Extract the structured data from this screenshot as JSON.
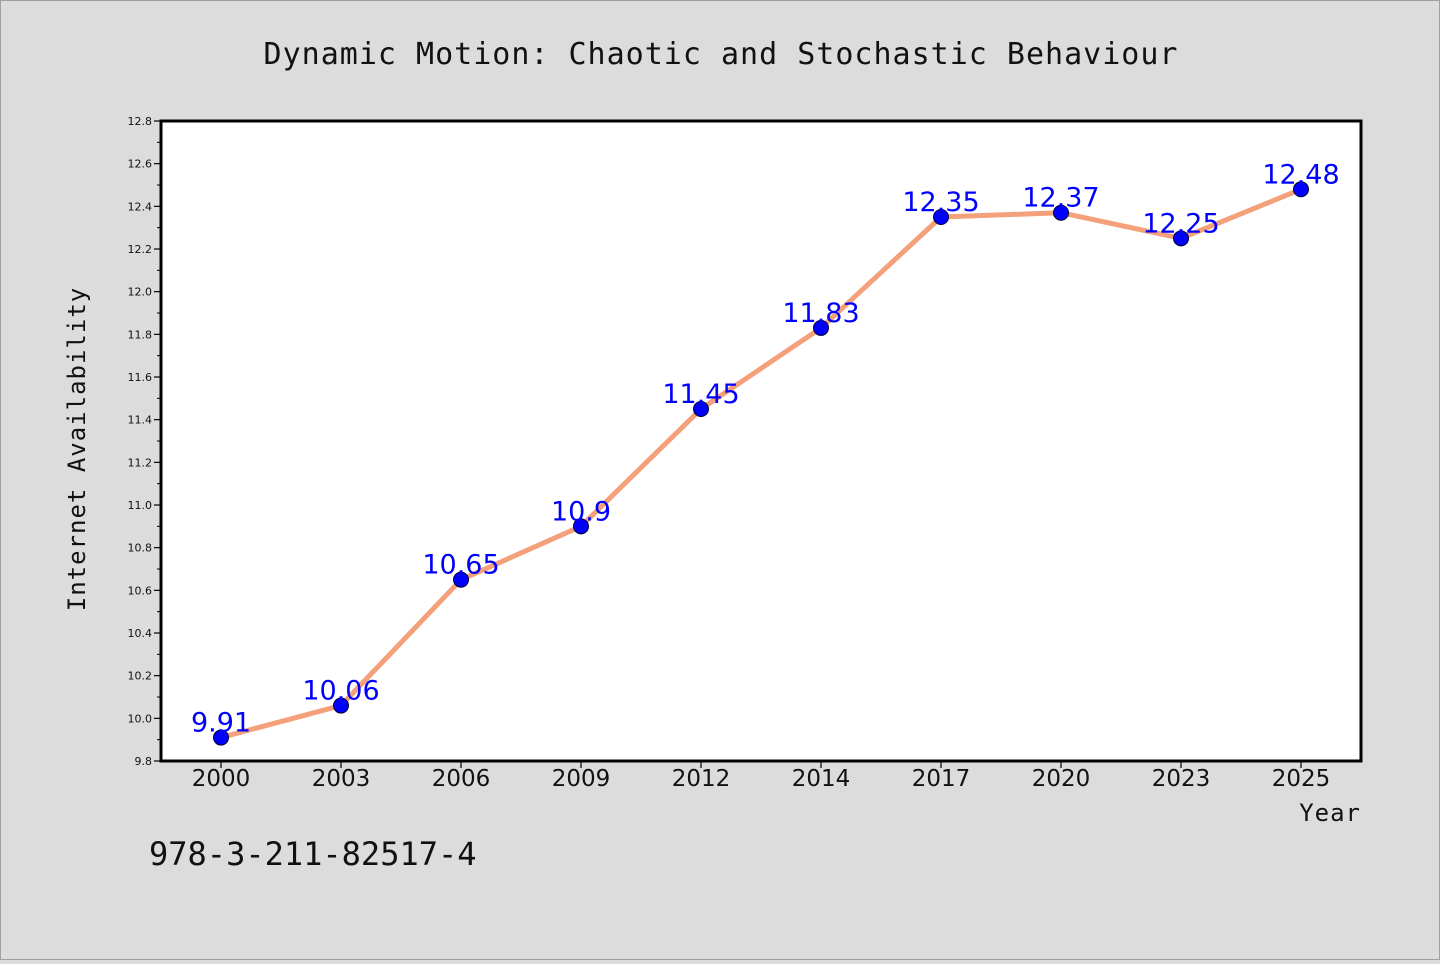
{
  "chart_data": {
    "type": "line",
    "title": "Dynamic Motion: Chaotic and Stochastic Behaviour",
    "xlabel": "Year",
    "ylabel": "Internet Availability",
    "categories": [
      "2000",
      "2003",
      "2006",
      "2009",
      "2012",
      "2014",
      "2017",
      "2020",
      "2023",
      "2025"
    ],
    "series": [
      {
        "values": [
          9.91,
          10.06,
          10.65,
          10.9,
          11.45,
          11.83,
          12.35,
          12.37,
          12.25,
          12.48
        ],
        "data_labels": [
          "9.91",
          "10.06",
          "10.65",
          "10.9",
          "11.45",
          "11.83",
          "12.35",
          "12.37",
          "12.25",
          "12.48"
        ],
        "line_color": "#f4a07a",
        "marker_color": "#0000ff"
      }
    ],
    "ylim": [
      9.8,
      12.8
    ],
    "yticks": [
      "9.8",
      "10.0",
      "10.2",
      "10.4",
      "10.6",
      "10.8",
      "11.0",
      "11.2",
      "11.4",
      "11.6",
      "11.8",
      "12.0",
      "12.2",
      "12.4",
      "12.6",
      "12.8"
    ],
    "grid": false,
    "legend": "none",
    "background_color": "#dcdcdc",
    "plot_background_color": "#ffffff"
  },
  "annotation": {
    "text": "978-3-211-82517-4"
  }
}
